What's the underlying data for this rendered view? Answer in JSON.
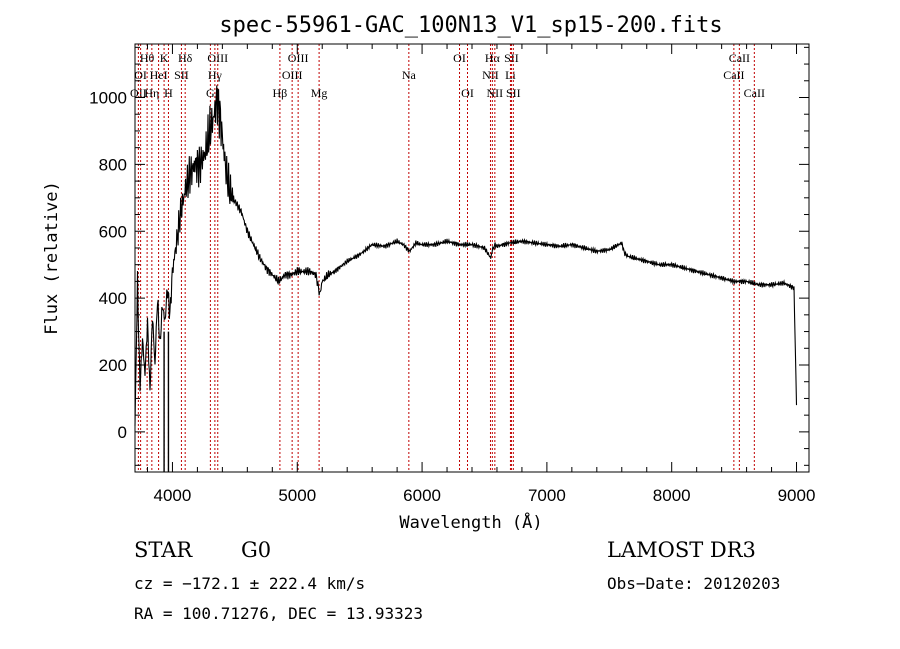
{
  "chart_data": {
    "type": "line",
    "title": "spec-55961-GAC_100N13_V1_sp15-200.fits",
    "xlabel": "Wavelength (Å)",
    "ylabel": "Flux (relative)",
    "xlim": [
      3700,
      9100
    ],
    "ylim": [
      -120,
      1160
    ],
    "xticks": [
      4000,
      5000,
      6000,
      7000,
      8000,
      9000
    ],
    "yticks": [
      0,
      200,
      400,
      600,
      800,
      1000
    ],
    "series": [
      {
        "name": "spectrum",
        "x": [
          3700,
          3720,
          3740,
          3760,
          3780,
          3800,
          3820,
          3840,
          3860,
          3880,
          3900,
          3920,
          3940,
          3960,
          3980,
          4000,
          4030,
          4060,
          4100,
          4140,
          4180,
          4220,
          4260,
          4300,
          4330,
          4360,
          4380,
          4400,
          4430,
          4460,
          4500,
          4550,
          4600,
          4650,
          4700,
          4750,
          4800,
          4850,
          4880,
          4900,
          4950,
          5000,
          5100,
          5150,
          5180,
          5200,
          5250,
          5300,
          5400,
          5500,
          5600,
          5700,
          5800,
          5850,
          5900,
          5950,
          6000,
          6100,
          6200,
          6300,
          6400,
          6500,
          6550,
          6562,
          6580,
          6600,
          6700,
          6800,
          6900,
          7000,
          7100,
          7200,
          7300,
          7400,
          7500,
          7550,
          7600,
          7620,
          7650,
          7700,
          7800,
          7900,
          8000,
          8100,
          8200,
          8300,
          8400,
          8500,
          8550,
          8600,
          8650,
          8700,
          8800,
          8900,
          8980,
          9000
        ],
        "y": [
          20,
          450,
          130,
          280,
          170,
          330,
          120,
          350,
          200,
          400,
          260,
          380,
          330,
          430,
          350,
          480,
          560,
          640,
          720,
          770,
          800,
          800,
          830,
          900,
          940,
          1000,
          950,
          880,
          780,
          720,
          690,
          660,
          600,
          560,
          520,
          490,
          470,
          450,
          460,
          470,
          470,
          480,
          480,
          470,
          410,
          450,
          470,
          480,
          510,
          530,
          560,
          555,
          570,
          560,
          540,
          565,
          560,
          560,
          570,
          560,
          560,
          550,
          520,
          540,
          560,
          555,
          565,
          570,
          565,
          560,
          555,
          560,
          550,
          540,
          545,
          555,
          565,
          535,
          525,
          520,
          510,
          500,
          500,
          490,
          480,
          470,
          460,
          450,
          450,
          450,
          445,
          440,
          440,
          445,
          430,
          80
        ]
      }
    ],
    "lines": [
      {
        "label": "OII",
        "x": 3727,
        "row": 3
      },
      {
        "label": "OI",
        "x": 3745,
        "row": 2
      },
      {
        "label": "Hθ",
        "x": 3797,
        "row": 1
      },
      {
        "label": "Hη",
        "x": 3835,
        "row": 3
      },
      {
        "label": "HeI",
        "x": 3889,
        "row": 2
      },
      {
        "label": "K",
        "x": 3933,
        "row": 1
      },
      {
        "label": "H",
        "x": 3968,
        "row": 3
      },
      {
        "label": "SII",
        "x": 4072,
        "row": 2
      },
      {
        "label": "Hδ",
        "x": 4102,
        "row": 1
      },
      {
        "label": "G",
        "x": 4304,
        "row": 3
      },
      {
        "label": "Hγ",
        "x": 4340,
        "row": 2
      },
      {
        "label": "OIII",
        "x": 4363,
        "row": 1
      },
      {
        "label": "Hβ",
        "x": 4861,
        "row": 3
      },
      {
        "label": "OIII",
        "x": 4959,
        "row": 2
      },
      {
        "label": "OIII",
        "x": 5007,
        "row": 1
      },
      {
        "label": "Mg",
        "x": 5175,
        "row": 3
      },
      {
        "label": "Na",
        "x": 5894,
        "row": 2
      },
      {
        "label": "OI",
        "x": 6300,
        "row": 1
      },
      {
        "label": "OI",
        "x": 6364,
        "row": 3
      },
      {
        "label": "NII",
        "x": 6548,
        "row": 2
      },
      {
        "label": "Hα",
        "x": 6563,
        "row": 1
      },
      {
        "label": "NII",
        "x": 6583,
        "row": 3
      },
      {
        "label": "Li",
        "x": 6708,
        "row": 2
      },
      {
        "label": "SII",
        "x": 6716,
        "row": 1
      },
      {
        "label": "SII",
        "x": 6731,
        "row": 3
      },
      {
        "label": "CaII",
        "x": 8498,
        "row": 2
      },
      {
        "label": "CaII",
        "x": 8542,
        "row": 1
      },
      {
        "label": "CaII",
        "x": 8662,
        "row": 3
      }
    ]
  },
  "info": {
    "class": "STAR",
    "subclass": "G0",
    "survey": "LAMOST DR3",
    "cz": "cz = −172.1 ± 222.4 km/s",
    "obsdate": "Obs−Date: 20120203",
    "coords": "RA = 100.71276, DEC =  13.93323"
  }
}
